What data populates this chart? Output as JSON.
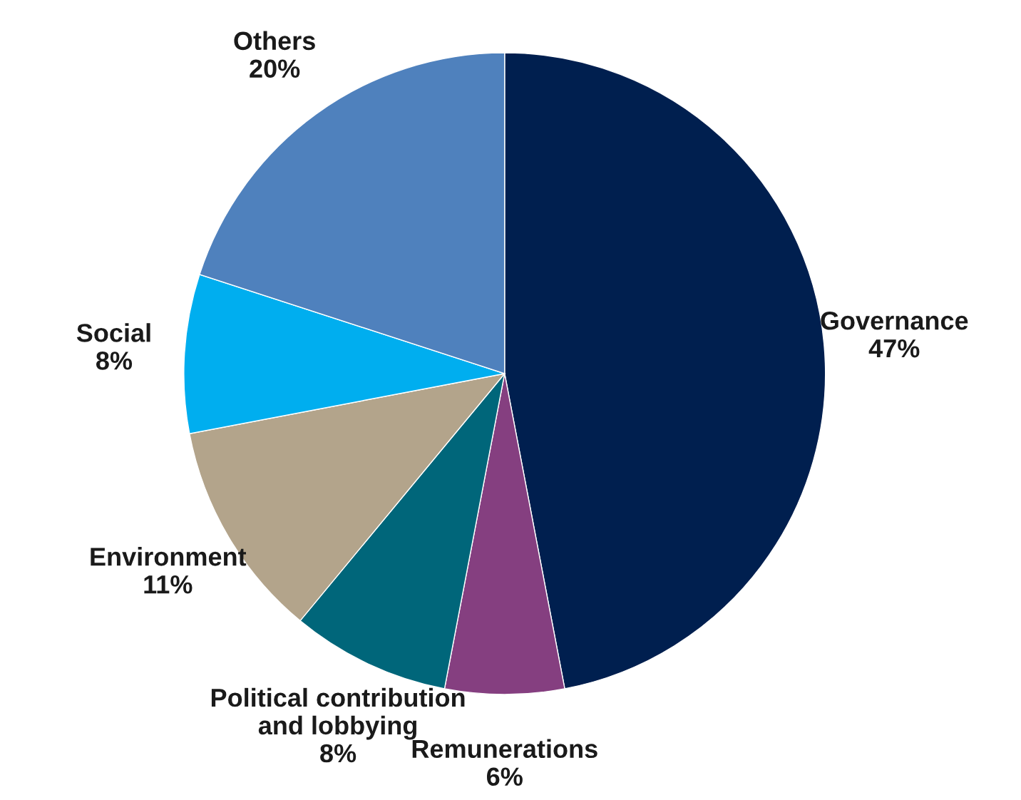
{
  "chart_data": {
    "type": "pie",
    "categories": [
      "Governance",
      "Remunerations",
      "Political contribution\nand lobbying",
      "Environment",
      "Social",
      "Others"
    ],
    "values": [
      47,
      6,
      8,
      11,
      8,
      20
    ],
    "value_labels": [
      "47%",
      "6%",
      "8%",
      "11%",
      "8%",
      "20%"
    ],
    "colors": [
      "#001f4f",
      "#853f80",
      "#00667a",
      "#b3a48b",
      "#00aeef",
      "#4f81bd"
    ]
  }
}
